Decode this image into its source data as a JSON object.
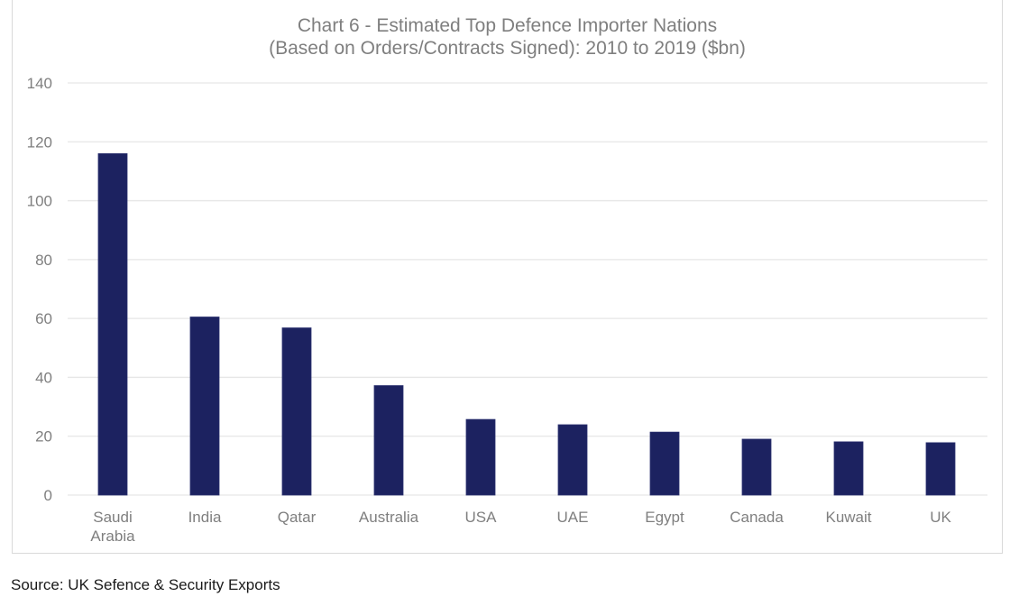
{
  "chart_data": {
    "type": "bar",
    "title": "Chart 6 - Estimated Top Defence Importer Nations",
    "subtitle": "(Based on Orders/Contracts Signed): 2010 to 2019 ($bn)",
    "xlabel": "",
    "ylabel": "",
    "categories": [
      "Saudi Arabia",
      "India",
      "Qatar",
      "Australia",
      "USA",
      "UAE",
      "Egypt",
      "Canada",
      "Kuwait",
      "UK"
    ],
    "category_lines": [
      [
        "Saudi",
        "Arabia"
      ],
      [
        "India"
      ],
      [
        "Qatar"
      ],
      [
        "Australia"
      ],
      [
        "USA"
      ],
      [
        "UAE"
      ],
      [
        "Egypt"
      ],
      [
        "Canada"
      ],
      [
        "Kuwait"
      ],
      [
        "UK"
      ]
    ],
    "values": [
      116,
      60.5,
      56.8,
      37.2,
      25.7,
      23.9,
      21.4,
      19.0,
      18.1,
      17.8
    ],
    "ylim": [
      0,
      140
    ],
    "yticks": [
      "0",
      "20",
      "40",
      "60",
      "80",
      "100",
      "120",
      "140"
    ],
    "grid": true,
    "legend": "none",
    "bar_color": "#1c2260",
    "grid_color": "#e6e6e6"
  },
  "source": "Source: UK Sefence & Security Exports"
}
